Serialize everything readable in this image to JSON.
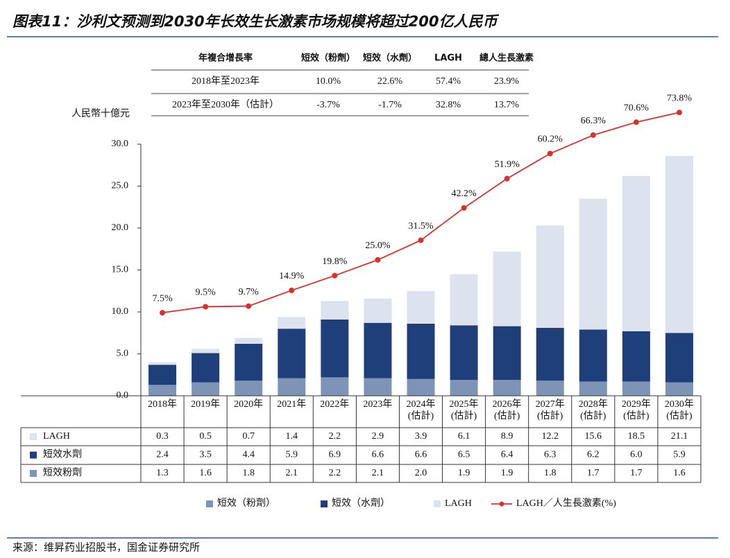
{
  "title": "图表11：沙利文预测到2030年长效生长激素市场规模将超过200亿人民币",
  "source": "来源：维昇药业招股书，国金证券研究所",
  "cagr_table": {
    "header": [
      "年複合增長率",
      "短效（粉劑）",
      "短效（水劑）",
      "LAGH",
      "總人生長激素"
    ],
    "rows": [
      [
        "2018年至2023年",
        "10.0%",
        "22.6%",
        "57.4%",
        "23.9%"
      ],
      [
        "2023年至2030年（估計）",
        "-3.7%",
        "-1.7%",
        "32.8%",
        "13.7%"
      ]
    ]
  },
  "chart_data": {
    "type": "bar",
    "stacked": true,
    "y_label": "人民幣十億元",
    "categories": [
      "2018年",
      "2019年",
      "2020年",
      "2021年",
      "2022年",
      "2023年",
      "2024年\n(估計)",
      "2025年\n(估計)",
      "2026年\n(估計)",
      "2027年\n(估計)",
      "2028年\n(估計)",
      "2029年\n(估計)",
      "2030年\n(估計)"
    ],
    "ylim": [
      0,
      30
    ],
    "yticks": [
      {
        "value": 0,
        "label": "0.0"
      },
      {
        "value": 5,
        "label": "5.0"
      },
      {
        "value": 10,
        "label": "10.0"
      },
      {
        "value": 15,
        "label": "15.0"
      },
      {
        "value": 20,
        "label": "20.0"
      },
      {
        "value": 25,
        "label": "25.0"
      },
      {
        "value": 30,
        "label": "30.0"
      }
    ],
    "y2lim": [
      -20,
      63.3
    ],
    "table_row_labels": [
      "短效粉劑",
      "短效水劑",
      "LAGH"
    ],
    "series": [
      {
        "name": "短效（粉劑）",
        "color": "#7d94b6",
        "values": [
          1.3,
          1.6,
          1.8,
          2.1,
          2.2,
          2.1,
          2.0,
          1.9,
          1.9,
          1.8,
          1.7,
          1.7,
          1.6
        ],
        "value_labels": [
          "1.3",
          "1.6",
          "1.8",
          "2.1",
          "2.2",
          "2.1",
          "2.0",
          "1.9",
          "1.9",
          "1.8",
          "1.7",
          "1.7",
          "1.6"
        ]
      },
      {
        "name": "短效（水劑）",
        "color": "#1f3f7a",
        "values": [
          2.4,
          3.5,
          4.4,
          5.9,
          6.9,
          6.6,
          6.6,
          6.5,
          6.4,
          6.3,
          6.2,
          6.0,
          5.9
        ],
        "value_labels": [
          "2.4",
          "3.5",
          "4.4",
          "5.9",
          "6.9",
          "6.6",
          "6.6",
          "6.5",
          "6.4",
          "6.3",
          "6.2",
          "6.0",
          "5.9"
        ]
      },
      {
        "name": "LAGH",
        "color": "#dde3ee",
        "values": [
          0.3,
          0.5,
          0.7,
          1.4,
          2.2,
          2.9,
          3.9,
          6.1,
          8.9,
          12.2,
          15.6,
          18.5,
          21.1
        ],
        "value_labels": [
          "0.3",
          "0.5",
          "0.7",
          "1.4",
          "2.2",
          "2.9",
          "3.9",
          "6.1",
          "8.9",
          "12.2",
          "15.6",
          "18.5",
          "21.1"
        ]
      },
      {
        "name": "LAGH／人生長激素(%)",
        "color": "#d9302c",
        "type": "line",
        "axis": "y2",
        "values": [
          7.5,
          9.5,
          9.7,
          14.9,
          19.8,
          25,
          31.5,
          42.2,
          51.9,
          60.2,
          66.3,
          70.6,
          73.8
        ],
        "value_labels": [
          "7.5%",
          "9.5%",
          "9.7%",
          "14.9%",
          "19.8%",
          "25.0%",
          "31.5%",
          "42.2%",
          "51.9%",
          "60.2%",
          "66.3%",
          "70.6%",
          "73.8%"
        ]
      }
    ]
  }
}
